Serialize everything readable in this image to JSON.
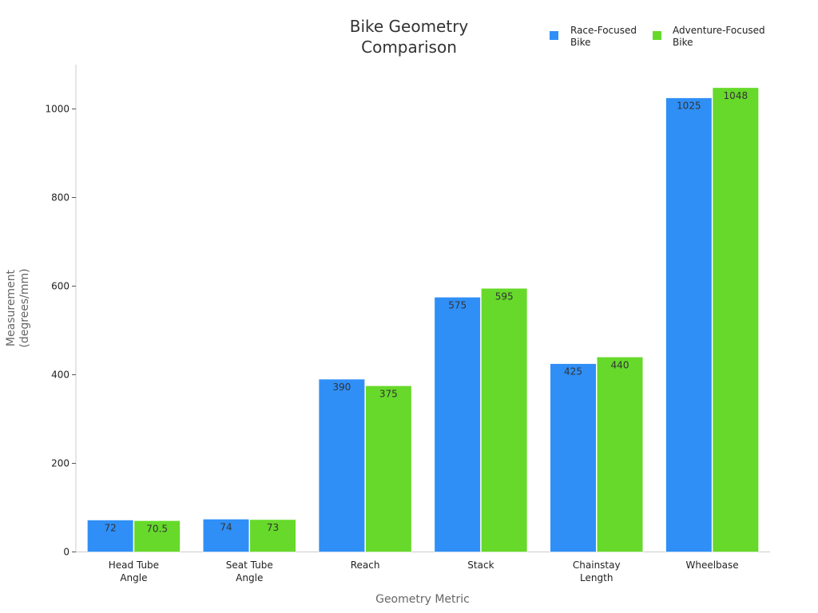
{
  "chart_data": {
    "type": "bar",
    "title": [
      "Bike Geometry",
      "Comparison"
    ],
    "xlabel": "Geometry Metric",
    "ylabel": [
      "Measurement",
      "(degrees/mm)"
    ],
    "categories": [
      [
        "Head Tube",
        "Angle"
      ],
      [
        "Seat Tube",
        "Angle"
      ],
      [
        "Reach"
      ],
      [
        "Stack"
      ],
      [
        "Chainstay",
        "Length"
      ],
      [
        "Wheelbase"
      ]
    ],
    "series": [
      {
        "name": [
          "Race-Focused",
          "Bike"
        ],
        "color": "#2f8ff7",
        "values": [
          72,
          74,
          390,
          575,
          425,
          1025
        ],
        "labels": [
          "72",
          "74",
          "390",
          "575",
          "425",
          "1025"
        ]
      },
      {
        "name": [
          "Adventure-Focused",
          "Bike"
        ],
        "color": "#66d92a",
        "values": [
          70.5,
          73,
          375,
          595,
          440,
          1048
        ],
        "labels": [
          "70.5",
          "73",
          "375",
          "595",
          "440",
          "1048"
        ]
      }
    ],
    "ylim": [
      0,
      1100
    ],
    "yticks": [
      0,
      200,
      400,
      600,
      800,
      1000
    ],
    "ytick_labels": [
      "0",
      "200",
      "400",
      "600",
      "800",
      "1000"
    ],
    "grid": false,
    "legend_position": "top-right"
  }
}
